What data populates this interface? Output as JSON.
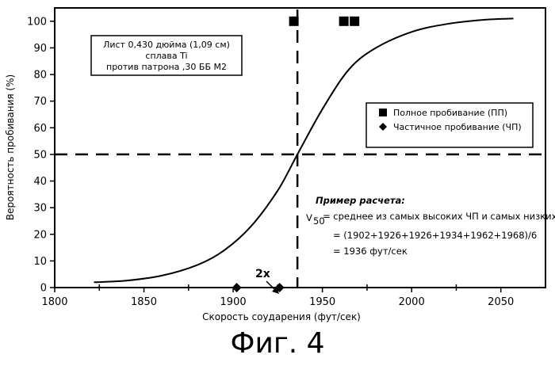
{
  "chart_data": {
    "type": "scatter",
    "xlabel": "Скорость соударения (фут/сек)",
    "ylabel": "Вероятность пробивания (%)",
    "xlim": [
      1800,
      2075
    ],
    "ylim": [
      0,
      105
    ],
    "xticks": [
      "1800",
      "1850",
      "1900",
      "1950",
      "2000",
      "2050"
    ],
    "yticks": [
      "0",
      "10",
      "20",
      "30",
      "40",
      "50",
      "60",
      "70",
      "80",
      "90",
      "100"
    ],
    "grid": false,
    "series": [
      {
        "name": "Полное пробивание (ПП)",
        "marker": "square",
        "x": [
          1934,
          1962,
          1968
        ],
        "y": [
          100,
          100,
          100
        ]
      },
      {
        "name": "Частичное пробивание (ЧП)",
        "marker": "diamond",
        "x": [
          1902,
          1926
        ],
        "y": [
          0,
          0
        ]
      }
    ],
    "curve": {
      "x": [
        1822,
        1840,
        1860,
        1880,
        1895,
        1910,
        1925,
        1936,
        1950,
        1965,
        1980,
        2000,
        2020,
        2040,
        2057
      ],
      "y": [
        2,
        2.6,
        4.5,
        8.5,
        14,
        23,
        36.5,
        50,
        67,
        82,
        90,
        96,
        99,
        100.5,
        101
      ]
    },
    "reference_lines": {
      "v50": 1936,
      "p50": 50
    },
    "info_box": {
      "lines": [
        "Лист 0,430 дюйма (1,09 см)",
        "сплава Ti",
        "против патрона ,30 ББ М2"
      ]
    },
    "legend": {
      "position": "right"
    },
    "annotation_2x": {
      "text": "2x",
      "x": 1926,
      "y": 0
    },
    "calc_example": {
      "title": "Пример расчета:",
      "v_symbol": "V",
      "v_sub": "50",
      "line1": "= среднее из самых высоких ЧП и самых низких ПП",
      "line2": "= (1902+1926+1926+1934+1962+1968)/6",
      "line3": "= 1936 фут/сек"
    },
    "colors": {
      "ink": "#000000",
      "curve": "#000000",
      "background": "#ffffff"
    }
  },
  "figure_caption": "Фиг. 4"
}
